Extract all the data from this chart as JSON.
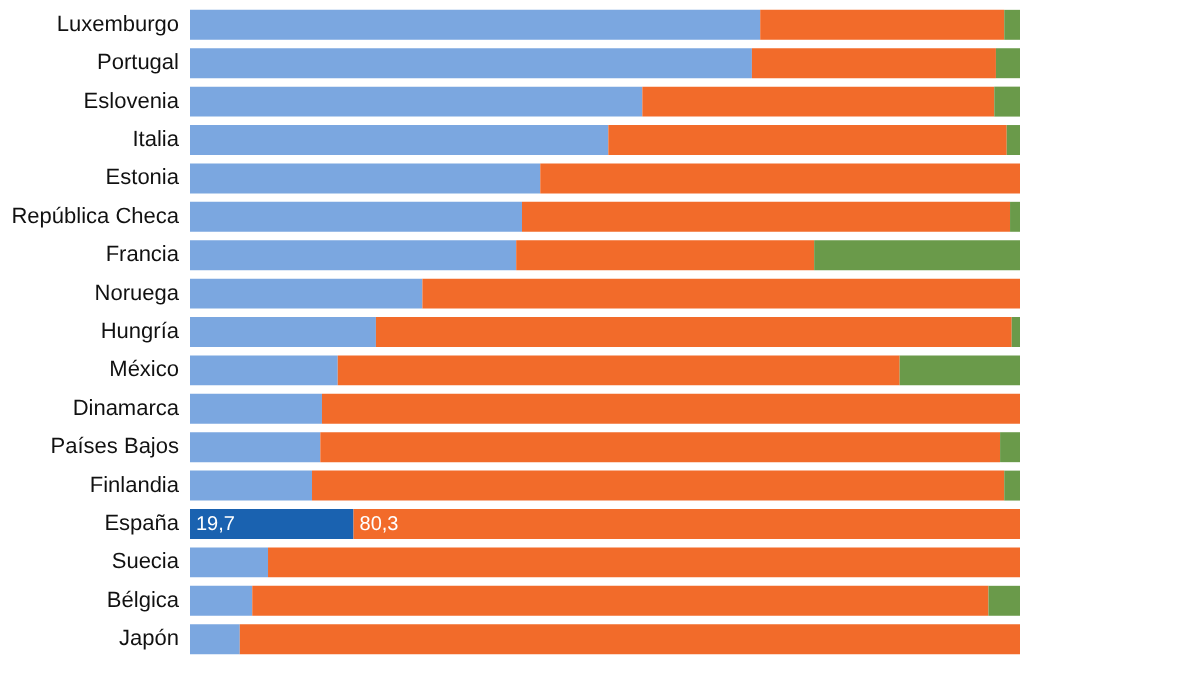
{
  "chart_data": {
    "type": "bar",
    "orientation": "horizontal",
    "stacked": true,
    "categories": [
      "Luxemburgo",
      "Portugal",
      "Eslovenia",
      "Italia",
      "Estonia",
      "República Checa",
      "Francia",
      "Noruega",
      "Hungría",
      "México",
      "Dinamarca",
      "Países Bajos",
      "Finlandia",
      "España",
      "Suecia",
      "Bélgica",
      "Japón"
    ],
    "series": [
      {
        "color": "#7ba7e0",
        "colors": [
          null,
          null,
          null,
          null,
          null,
          null,
          null,
          null,
          null,
          null,
          null,
          null,
          null,
          "#1a62b0",
          null,
          null,
          null
        ],
        "values": [
          68.7,
          67.7,
          54.5,
          50.4,
          42.2,
          40.0,
          39.3,
          28.0,
          22.4,
          17.8,
          15.9,
          15.7,
          14.7,
          19.7,
          9.4,
          7.5,
          6.0
        ],
        "value_labels": [
          null,
          null,
          null,
          null,
          null,
          null,
          null,
          null,
          null,
          null,
          null,
          null,
          null,
          "19,7",
          null,
          null,
          null
        ]
      },
      {
        "color": "#f26b2a",
        "values": [
          29.4,
          29.4,
          42.4,
          48.0,
          57.8,
          58.8,
          35.9,
          72.0,
          76.6,
          67.7,
          84.1,
          81.9,
          83.4,
          80.3,
          90.6,
          88.7,
          94.0
        ],
        "value_labels": [
          null,
          null,
          null,
          null,
          null,
          null,
          null,
          null,
          null,
          null,
          null,
          null,
          null,
          "80,3",
          null,
          null,
          null
        ]
      },
      {
        "color": "#6a9a4a",
        "values": [
          1.9,
          2.9,
          3.1,
          1.6,
          0,
          1.2,
          24.8,
          0,
          1.0,
          14.5,
          0,
          2.4,
          1.9,
          0,
          0,
          3.8,
          0
        ]
      }
    ]
  }
}
